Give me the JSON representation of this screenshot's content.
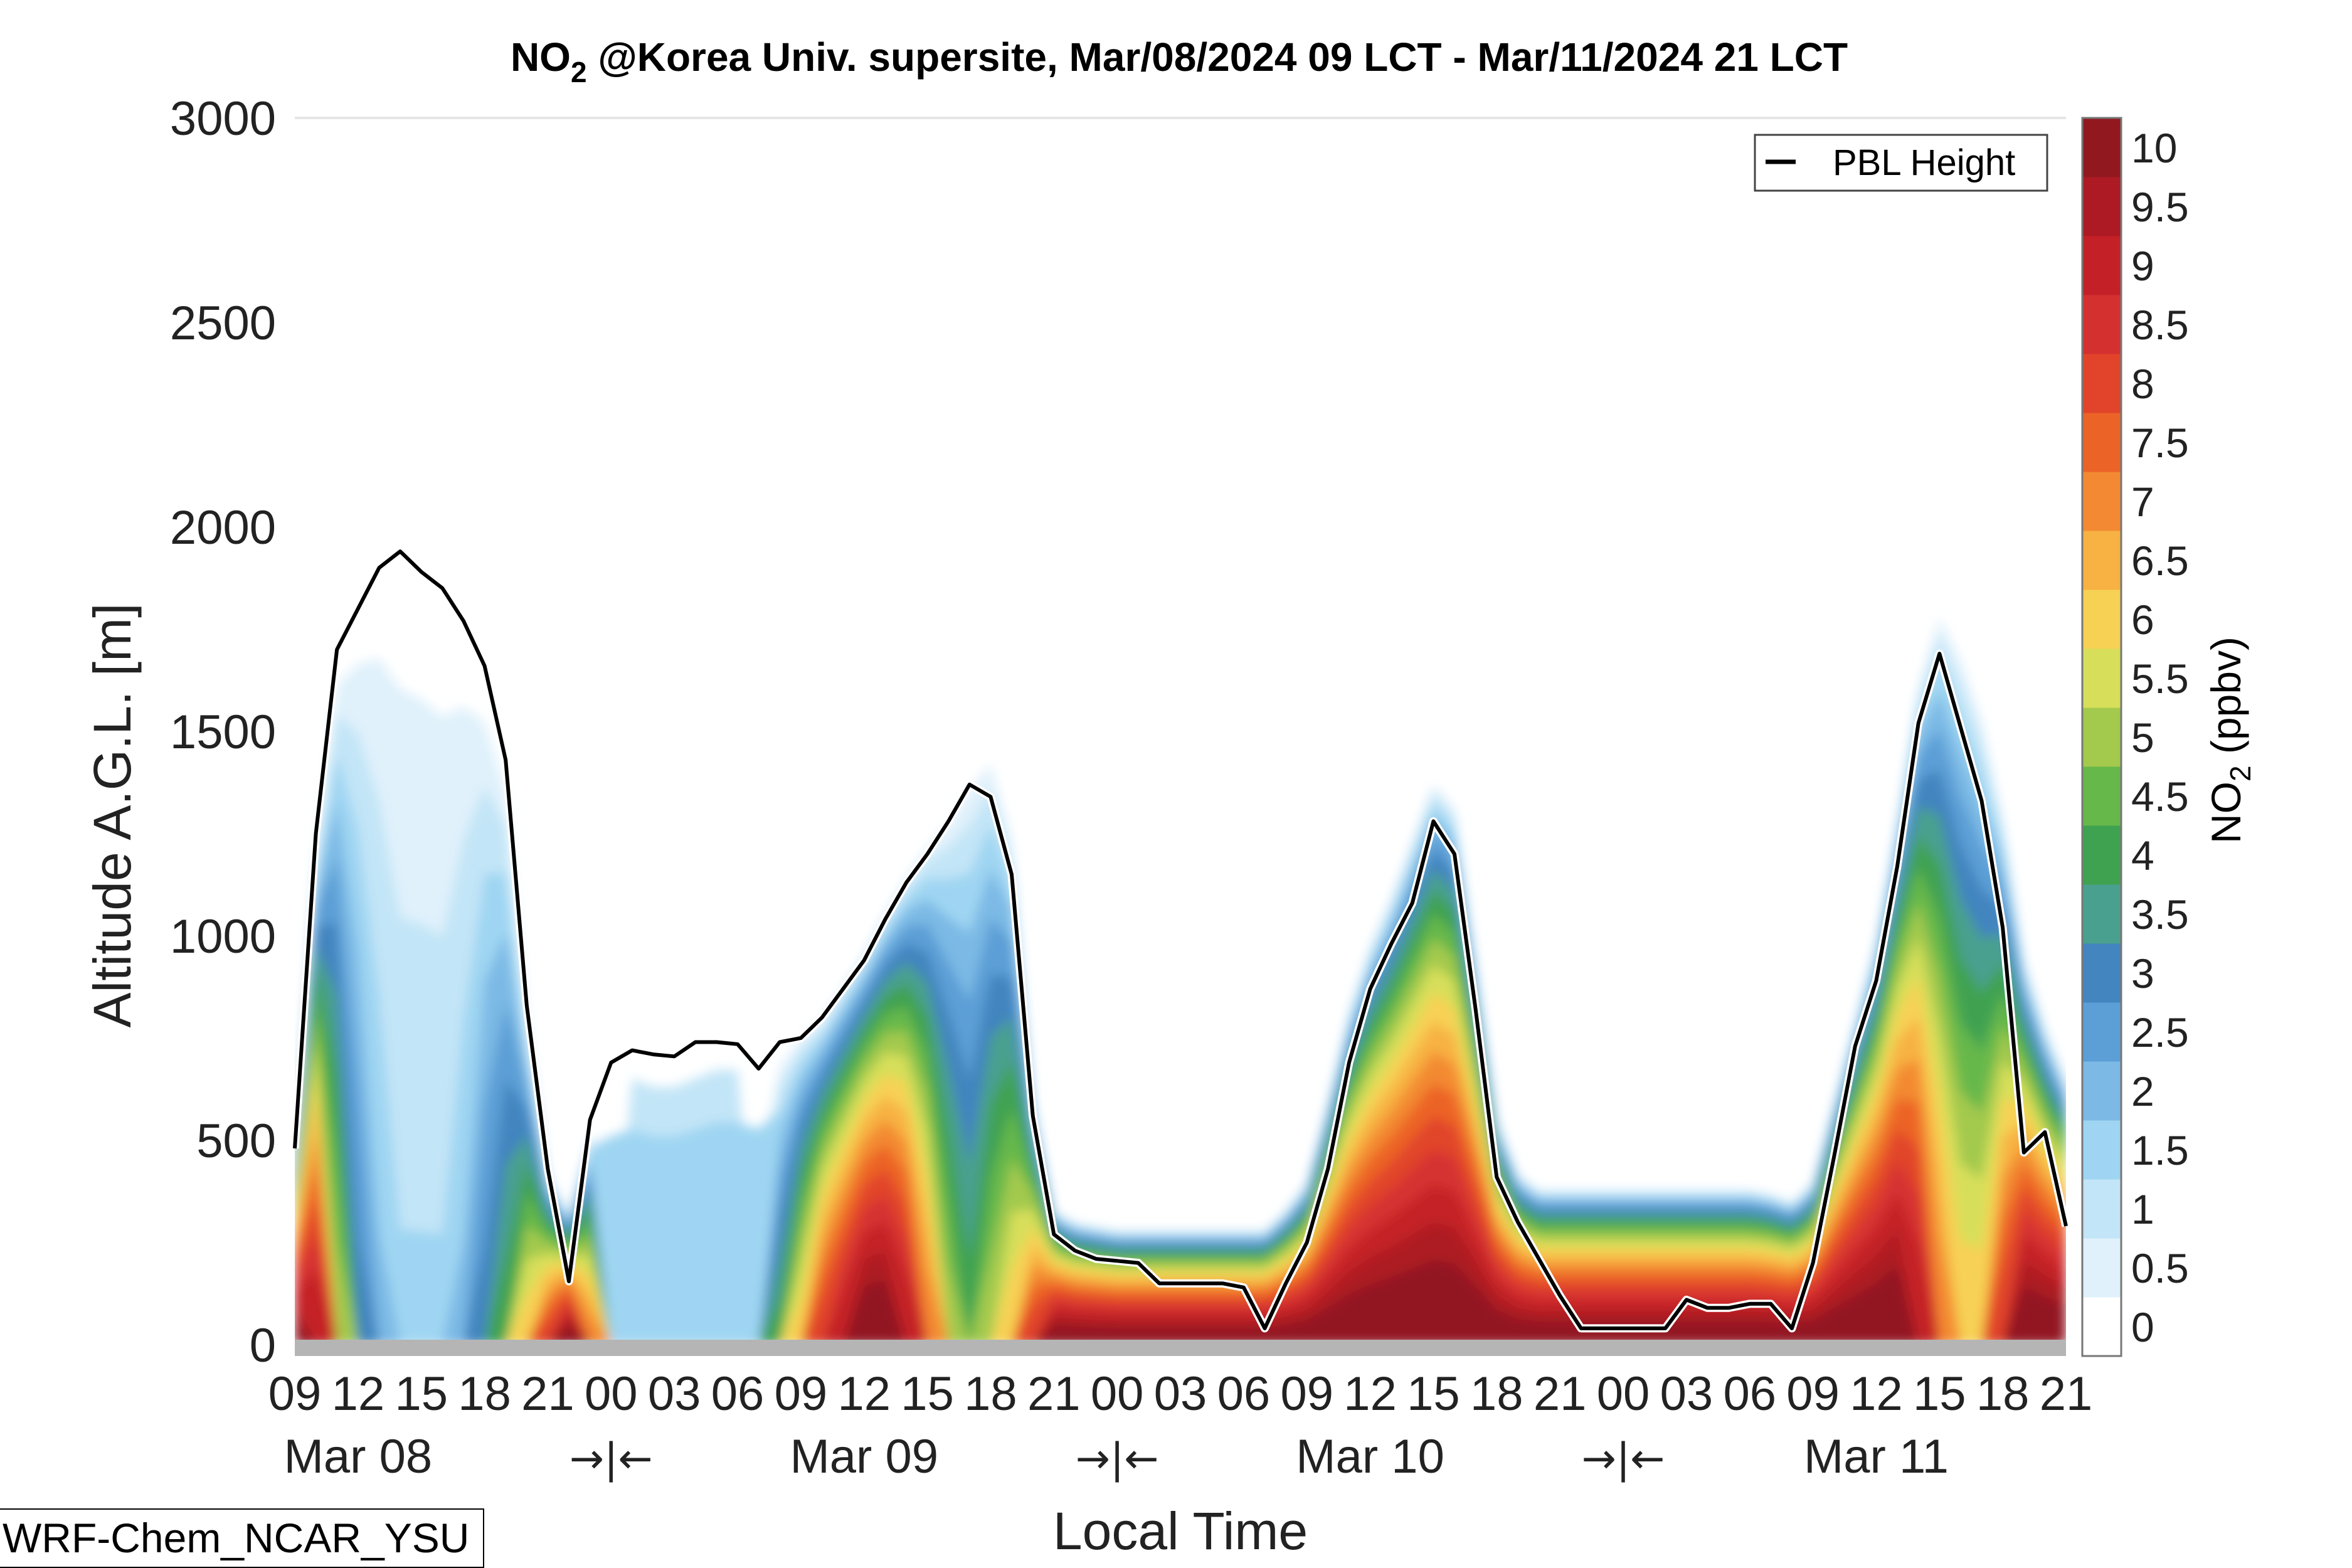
{
  "chart_data": {
    "type": "heatmap",
    "title_prefix": "NO",
    "title_sub": "2",
    "title_suffix": " @Korea Univ. supersite, Mar/08/2024 09 LCT - Mar/11/2024 21 LCT",
    "xlabel": "Local Time",
    "ylabel": "Altitude A.G.L. [m]",
    "ylim": [
      0,
      3000
    ],
    "y_ticks": [
      0,
      500,
      1000,
      1500,
      2000,
      2500,
      3000
    ],
    "x_tick_labels": [
      "09",
      "12",
      "15",
      "18",
      "21",
      "00",
      "03",
      "06",
      "09",
      "12",
      "15",
      "18",
      "21",
      "00",
      "03",
      "06",
      "09",
      "12",
      "15",
      "18",
      "21",
      "00",
      "03",
      "06",
      "09",
      "12",
      "15",
      "18",
      "21"
    ],
    "day_labels": [
      "Mar 08",
      "Mar 09",
      "Mar 10",
      "Mar 11"
    ],
    "day_separators": [
      "→|←",
      "→|←",
      "→|←"
    ],
    "grid": false,
    "legend": {
      "label": "PBL Height",
      "position": "top-right"
    },
    "colorbar": {
      "label_prefix": "NO",
      "label_sub": "2",
      "label_suffix": " (ppbv)",
      "ticks": [
        "0",
        "0.5",
        "1",
        "1.5",
        "2",
        "2.5",
        "3",
        "3.5",
        "4",
        "4.5",
        "5",
        "5.5",
        "6",
        "6.5",
        "7",
        "7.5",
        "8",
        "8.5",
        "9",
        "9.5",
        "10"
      ],
      "colors": [
        "#ffffff",
        "#e0f1fb",
        "#c2e5f7",
        "#9fd5f2",
        "#7cb9e5",
        "#5c9fd6",
        "#4385bf",
        "#4aa08e",
        "#3fa251",
        "#66b84b",
        "#a3c94d",
        "#d7df5a",
        "#f7d154",
        "#f7b243",
        "#f38a33",
        "#ec6328",
        "#e1442a",
        "#d53030",
        "#c42028",
        "#ad1a23",
        "#921820"
      ]
    },
    "pbl_height": {
      "hours": [
        0,
        1,
        2,
        3,
        4,
        5,
        6,
        7,
        8,
        9,
        10,
        11,
        12,
        13,
        14,
        15,
        16,
        17,
        18,
        19,
        20,
        21,
        22,
        23,
        24,
        25,
        26,
        27,
        28,
        29,
        30,
        31,
        32,
        33,
        34,
        35,
        36,
        37,
        38,
        39,
        40,
        41,
        42,
        43,
        44,
        45,
        46,
        47,
        48,
        49,
        50,
        51,
        52,
        53,
        54,
        55,
        56,
        57,
        58,
        59,
        60,
        61,
        62,
        63,
        64,
        65,
        66,
        67,
        68,
        69,
        70,
        71,
        72,
        73,
        74,
        75,
        76,
        77,
        78,
        79,
        80,
        81,
        82,
        83,
        84
      ],
      "values": [
        480,
        1250,
        1700,
        1800,
        1900,
        1940,
        1890,
        1850,
        1770,
        1660,
        1430,
        830,
        430,
        155,
        550,
        690,
        720,
        710,
        705,
        740,
        740,
        735,
        675,
        740,
        750,
        800,
        870,
        940,
        1040,
        1130,
        1200,
        1280,
        1370,
        1340,
        1150,
        560,
        270,
        230,
        210,
        205,
        200,
        150,
        150,
        150,
        150,
        140,
        40,
        150,
        250,
        430,
        690,
        870,
        980,
        1080,
        1280,
        1200,
        820,
        410,
        300,
        210,
        120,
        40,
        40,
        40,
        40,
        40,
        110,
        90,
        90,
        100,
        100,
        40,
        200,
        460,
        730,
        890,
        1170,
        1520,
        1690,
        1510,
        1330,
        1020,
        470,
        520,
        290
      ]
    },
    "no2_field": {
      "description_levels_ppbv": [
        0.5,
        1,
        1.5,
        2,
        2.5,
        3,
        3.5,
        4,
        4.5,
        5,
        5.5,
        6,
        6.5,
        7,
        7.5,
        8,
        8.5,
        9,
        9.5,
        10
      ],
      "surface_layer_note": "",
      "hours": [
        0,
        1,
        2,
        3,
        4,
        5,
        6,
        7,
        8,
        9,
        10,
        11,
        12,
        13,
        14,
        15,
        16,
        17,
        18,
        19,
        20,
        21,
        22,
        23,
        24,
        25,
        26,
        27,
        28,
        29,
        30,
        31,
        32,
        33,
        34,
        35,
        36,
        37,
        38,
        39,
        40,
        41,
        42,
        43,
        44,
        45,
        46,
        47,
        48,
        49,
        50,
        51,
        52,
        53,
        54,
        55,
        56,
        57,
        58,
        59,
        60,
        61,
        62,
        63,
        64,
        65,
        66,
        67,
        68,
        69,
        70,
        71,
        72,
        73,
        74,
        75,
        76,
        77,
        78,
        79,
        80,
        81,
        82,
        83,
        84
      ],
      "low_core_peak_ppbv": [
        10,
        9,
        5,
        3,
        2,
        1.5,
        1.5,
        1.5,
        2,
        3,
        4,
        6,
        8,
        10,
        7,
        1,
        0.5,
        0.5,
        0.5,
        0.5,
        0.5,
        0.5,
        1,
        4,
        6,
        8,
        9,
        10,
        10,
        9,
        7,
        5,
        4,
        5,
        6,
        8,
        10,
        10,
        10,
        10,
        10,
        10,
        10,
        10,
        10,
        10,
        10,
        10,
        10,
        10,
        10,
        10,
        10,
        10,
        10,
        10,
        10,
        10,
        10,
        10,
        10,
        10,
        10,
        10,
        10,
        10,
        10,
        10,
        10,
        10,
        10,
        10,
        10,
        10,
        10,
        10,
        10,
        9,
        7,
        6,
        6,
        8,
        10,
        10,
        10
      ],
      "mixing_depth_m": [
        450,
        1200,
        1650,
        1750,
        1850,
        1880,
        1850,
        1800,
        1720,
        1600,
        1400,
        800,
        420,
        320,
        520,
        600,
        620,
        600,
        600,
        620,
        640,
        640,
        620,
        700,
        760,
        800,
        880,
        960,
        1060,
        1150,
        1230,
        1300,
        1400,
        1450,
        1250,
        620,
        330,
        300,
        290,
        280,
        280,
        280,
        280,
        280,
        280,
        280,
        280,
        330,
        400,
        600,
        820,
        980,
        1100,
        1240,
        1380,
        1320,
        950,
        560,
        420,
        380,
        380,
        380,
        380,
        380,
        380,
        380,
        380,
        380,
        380,
        380,
        370,
        350,
        400,
        600,
        800,
        1000,
        1300,
        1620,
        1800,
        1700,
        1550,
        1300,
        950,
        780,
        650
      ]
    }
  },
  "footer": {
    "model_label": "WRF-Chem_NCAR_YSU"
  }
}
